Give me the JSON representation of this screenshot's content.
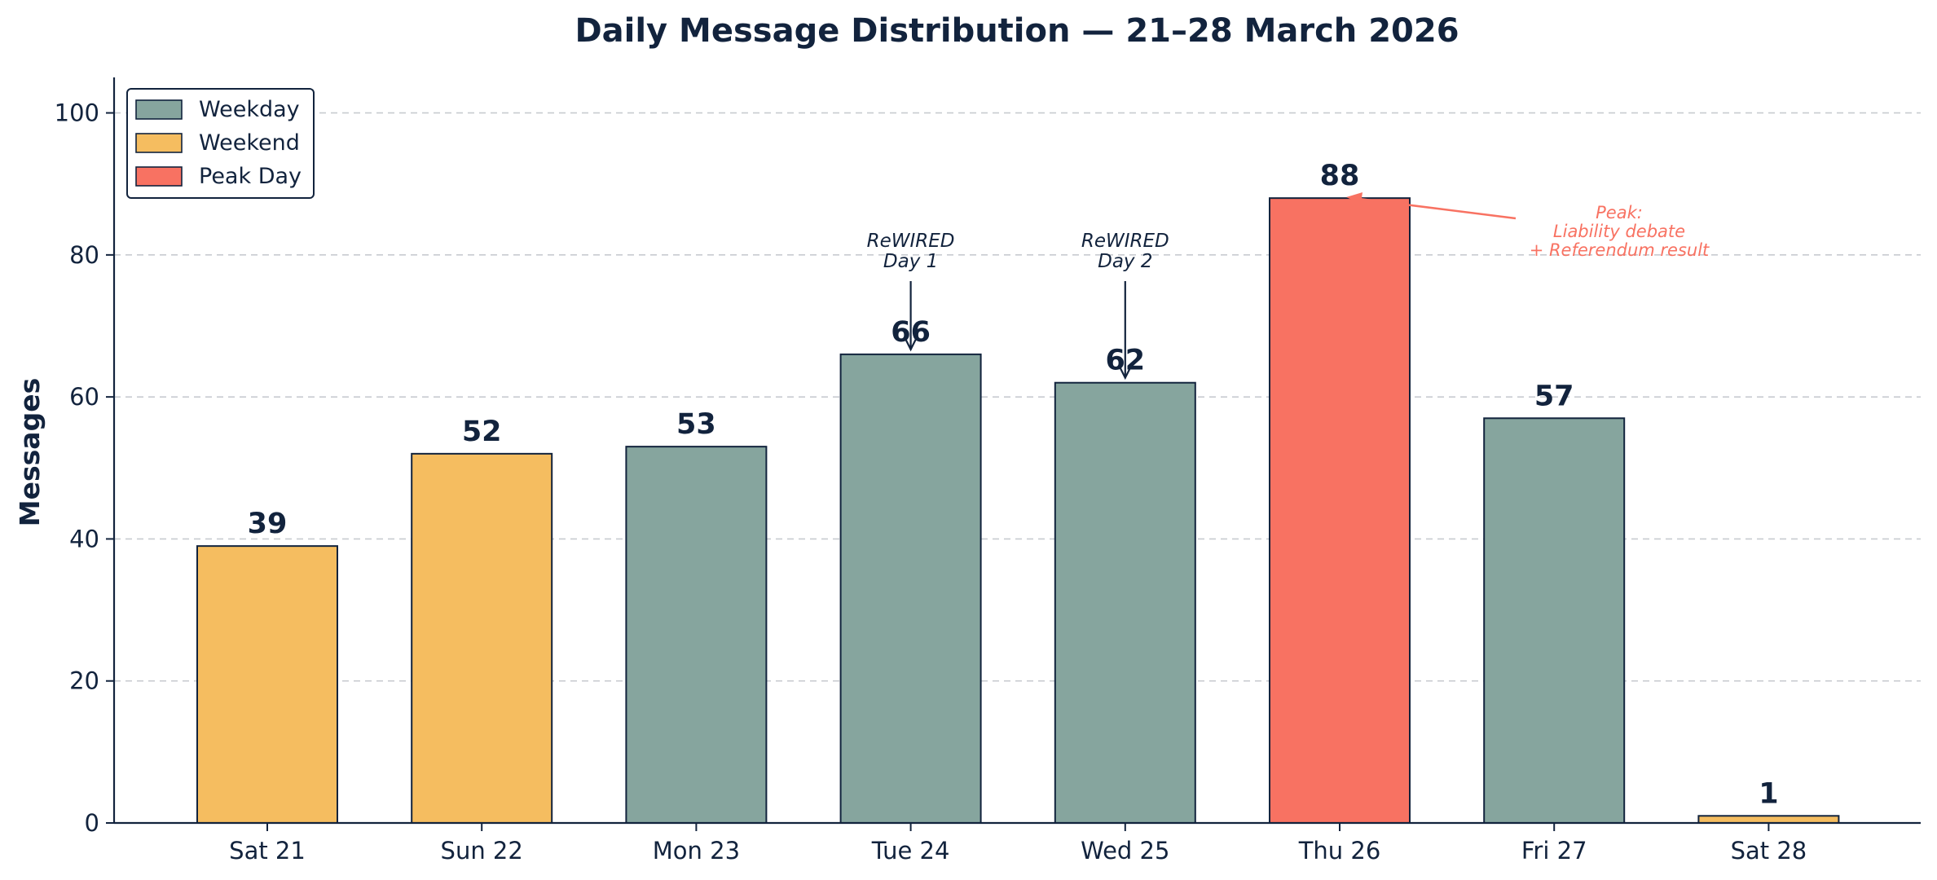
{
  "chart_data": {
    "type": "bar",
    "title": "Daily Message Distribution — 21–28 March 2026",
    "xlabel": "",
    "ylabel": "Messages",
    "ylim": [
      0,
      105
    ],
    "yticks": [
      0,
      20,
      40,
      60,
      80,
      100
    ],
    "grid": "horizontal dashed",
    "legend_position": "top-left",
    "categories": [
      "Sat 21",
      "Sun 22",
      "Mon 23",
      "Tue 24",
      "Wed 25",
      "Thu 26",
      "Fri 27",
      "Sat 28"
    ],
    "values": [
      39,
      52,
      53,
      66,
      62,
      88,
      57,
      1
    ],
    "groups": [
      "Weekend",
      "Weekend",
      "Weekday",
      "Weekday",
      "Weekday",
      "Peak Day",
      "Weekday",
      "Weekend"
    ],
    "legend": [
      {
        "name": "Weekday",
        "color": "#86a59e"
      },
      {
        "name": "Weekend",
        "color": "#f5bd60"
      },
      {
        "name": "Peak Day",
        "color": "#f87262"
      }
    ],
    "annotations": [
      {
        "category": "Tue 24",
        "lines": [
          "ReWIRED",
          "Day 1"
        ]
      },
      {
        "category": "Wed 25",
        "lines": [
          "ReWIRED",
          "Day 2"
        ]
      },
      {
        "category": "Thu 26",
        "lines": [
          "Peak:",
          "Liability debate",
          "+ Referendum result"
        ],
        "color": "#f87262"
      }
    ]
  }
}
